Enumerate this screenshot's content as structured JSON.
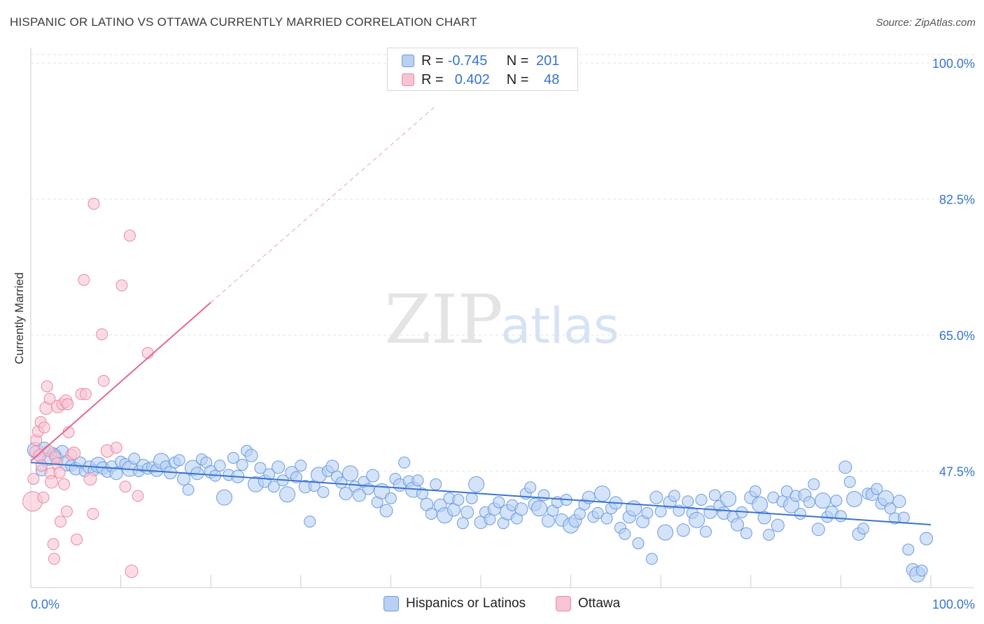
{
  "title": "HISPANIC OR LATINO VS OTTAWA CURRENTLY MARRIED CORRELATION CHART",
  "source": "Source: ZipAtlas.com",
  "watermark": {
    "zip": "ZIP",
    "atlas": "atlas"
  },
  "legend": {
    "r_label": "R =",
    "n_label": "N =",
    "rows": [
      {
        "name": "Hispanics or Latinos",
        "r": "-0.745",
        "n": "201",
        "fill": "#b8d0f3",
        "stroke": "#6b9be0"
      },
      {
        "name": "Ottawa",
        "r": "0.402",
        "n": "48",
        "fill": "#f8c4d4",
        "stroke": "#e88aa8"
      }
    ]
  },
  "colors": {
    "blue": "#3874d1",
    "blue_fill": "#b8d0f3",
    "blue_stroke": "#6b9be0",
    "pink": "#e3688e",
    "pink_fill": "#f8c4d4",
    "pink_stroke": "#e88aa8",
    "grid": "#e3e3e3",
    "tick_label": "#3874d1"
  },
  "chart_data": {
    "type": "scatter",
    "xlabel": "",
    "ylabel": "Currently Married",
    "x_tick_labels": {
      "left": "0.0%",
      "right": "100.0%"
    },
    "y_tick_labels": [
      "100.0%",
      "82.5%",
      "65.0%",
      "47.5%"
    ],
    "y_ticks": [
      100.0,
      82.5,
      65.0,
      47.5
    ],
    "xlim": [
      0,
      100
    ],
    "ylim": [
      32.5,
      102
    ],
    "series": [
      {
        "name": "Hispanics or Latinos",
        "r": -0.745,
        "n": 201,
        "trend": {
          "x0": 0,
          "y0": 48.6,
          "x1": 100,
          "y1": 40.6
        },
        "points": [
          [
            0.5,
            50.2
          ],
          [
            1.0,
            49.4
          ],
          [
            1.5,
            50.5
          ],
          [
            2.0,
            49.0
          ],
          [
            2.5,
            49.8
          ],
          [
            3.0,
            49.2
          ],
          [
            3.5,
            50.0
          ],
          [
            4.0,
            48.5
          ],
          [
            4.5,
            48.2
          ],
          [
            5.0,
            47.8
          ],
          [
            5.5,
            48.6
          ],
          [
            6.0,
            47.5
          ],
          [
            6.5,
            48.0
          ],
          [
            7.0,
            47.6
          ],
          [
            7.5,
            48.3
          ],
          [
            8.0,
            47.9
          ],
          [
            8.5,
            47.4
          ],
          [
            9.0,
            48.1
          ],
          [
            9.5,
            47.2
          ],
          [
            10.0,
            48.7
          ],
          [
            10.5,
            48.4
          ],
          [
            11.0,
            47.8
          ],
          [
            11.5,
            49.1
          ],
          [
            12.0,
            47.5
          ],
          [
            12.5,
            48.2
          ],
          [
            13.0,
            47.8
          ],
          [
            13.5,
            48.0
          ],
          [
            14.0,
            47.6
          ],
          [
            14.5,
            48.8
          ],
          [
            15.0,
            48.1
          ],
          [
            15.5,
            47.3
          ],
          [
            16.0,
            48.6
          ],
          [
            16.5,
            48.9
          ],
          [
            17.0,
            46.5
          ],
          [
            17.5,
            45.1
          ],
          [
            18.0,
            47.9
          ],
          [
            18.5,
            47.2
          ],
          [
            19.0,
            49.0
          ],
          [
            19.5,
            48.6
          ],
          [
            20.0,
            47.4
          ],
          [
            20.5,
            46.9
          ],
          [
            21.0,
            48.2
          ],
          [
            21.5,
            44.1
          ],
          [
            22.0,
            47.0
          ],
          [
            22.5,
            49.2
          ],
          [
            23.0,
            46.8
          ],
          [
            23.5,
            48.3
          ],
          [
            24.0,
            50.1
          ],
          [
            24.5,
            49.5
          ],
          [
            25.0,
            45.8
          ],
          [
            25.5,
            47.9
          ],
          [
            26.0,
            46.2
          ],
          [
            26.5,
            47.1
          ],
          [
            27.0,
            45.5
          ],
          [
            27.5,
            48.0
          ],
          [
            28.0,
            46.3
          ],
          [
            28.5,
            44.5
          ],
          [
            29.0,
            47.3
          ],
          [
            29.5,
            46.7
          ],
          [
            30.0,
            48.2
          ],
          [
            30.5,
            45.5
          ],
          [
            31.0,
            41.0
          ],
          [
            31.5,
            45.6
          ],
          [
            32.0,
            47.0
          ],
          [
            32.5,
            44.8
          ],
          [
            33.0,
            47.5
          ],
          [
            33.5,
            48.1
          ],
          [
            34.0,
            46.8
          ],
          [
            34.5,
            46.0
          ],
          [
            35.0,
            44.6
          ],
          [
            35.5,
            47.2
          ],
          [
            36.0,
            45.5
          ],
          [
            36.5,
            44.4
          ],
          [
            37.0,
            46.1
          ],
          [
            37.5,
            45.2
          ],
          [
            38.0,
            46.9
          ],
          [
            38.5,
            43.5
          ],
          [
            39.0,
            44.9
          ],
          [
            39.5,
            42.4
          ],
          [
            40.0,
            44.0
          ],
          [
            40.5,
            46.5
          ],
          [
            41.0,
            45.7
          ],
          [
            41.5,
            48.6
          ],
          [
            42.0,
            46.2
          ],
          [
            42.5,
            45.1
          ],
          [
            43.0,
            46.3
          ],
          [
            43.5,
            44.6
          ],
          [
            44.0,
            43.2
          ],
          [
            44.5,
            42.0
          ],
          [
            45.0,
            45.8
          ],
          [
            45.5,
            43.1
          ],
          [
            46.0,
            41.8
          ],
          [
            46.5,
            44.0
          ],
          [
            47.0,
            42.5
          ],
          [
            47.5,
            43.8
          ],
          [
            48.0,
            40.8
          ],
          [
            48.5,
            42.2
          ],
          [
            49.0,
            44.0
          ],
          [
            49.5,
            45.8
          ],
          [
            50.0,
            40.9
          ],
          [
            50.5,
            42.2
          ],
          [
            51.0,
            41.3
          ],
          [
            51.5,
            42.6
          ],
          [
            52.0,
            43.5
          ],
          [
            52.5,
            40.8
          ],
          [
            53.0,
            42.2
          ],
          [
            53.5,
            43.1
          ],
          [
            54.0,
            41.4
          ],
          [
            54.5,
            42.6
          ],
          [
            55.0,
            44.6
          ],
          [
            55.5,
            45.4
          ],
          [
            56.0,
            43.2
          ],
          [
            56.5,
            42.7
          ],
          [
            57.0,
            44.4
          ],
          [
            57.5,
            41.1
          ],
          [
            58.0,
            42.4
          ],
          [
            58.5,
            43.5
          ],
          [
            59.0,
            41.2
          ],
          [
            59.5,
            43.8
          ],
          [
            60.0,
            40.5
          ],
          [
            60.5,
            41.1
          ],
          [
            61.0,
            42.0
          ],
          [
            61.5,
            43.2
          ],
          [
            62.0,
            44.1
          ],
          [
            62.5,
            41.6
          ],
          [
            63.0,
            42.1
          ],
          [
            63.5,
            44.6
          ],
          [
            64.0,
            41.4
          ],
          [
            64.5,
            42.7
          ],
          [
            65.0,
            43.4
          ],
          [
            65.5,
            40.2
          ],
          [
            66.0,
            39.4
          ],
          [
            66.5,
            41.6
          ],
          [
            67.0,
            42.7
          ],
          [
            67.5,
            38.2
          ],
          [
            68.0,
            41.0
          ],
          [
            68.5,
            42.1
          ],
          [
            69.0,
            36.2
          ],
          [
            69.5,
            44.1
          ],
          [
            70.0,
            42.3
          ],
          [
            70.5,
            39.6
          ],
          [
            71.0,
            43.5
          ],
          [
            71.5,
            44.3
          ],
          [
            72.0,
            42.4
          ],
          [
            72.5,
            39.9
          ],
          [
            73.0,
            43.6
          ],
          [
            73.5,
            42.1
          ],
          [
            74.0,
            41.2
          ],
          [
            74.5,
            43.8
          ],
          [
            75.0,
            39.7
          ],
          [
            75.5,
            42.2
          ],
          [
            76.0,
            44.4
          ],
          [
            76.5,
            43.0
          ],
          [
            77.0,
            42.1
          ],
          [
            77.5,
            43.9
          ],
          [
            78.0,
            41.6
          ],
          [
            78.5,
            40.6
          ],
          [
            79.0,
            42.2
          ],
          [
            79.5,
            39.5
          ],
          [
            80.0,
            44.1
          ],
          [
            80.5,
            44.9
          ],
          [
            81.0,
            43.2
          ],
          [
            81.5,
            41.5
          ],
          [
            82.0,
            39.3
          ],
          [
            82.5,
            44.1
          ],
          [
            83.0,
            40.5
          ],
          [
            83.5,
            43.6
          ],
          [
            84.0,
            44.9
          ],
          [
            84.5,
            43.1
          ],
          [
            85.0,
            44.3
          ],
          [
            85.5,
            42.0
          ],
          [
            86.0,
            44.4
          ],
          [
            86.5,
            43.5
          ],
          [
            87.0,
            45.8
          ],
          [
            87.5,
            40.0
          ],
          [
            88.0,
            43.7
          ],
          [
            88.5,
            41.6
          ],
          [
            89.0,
            42.2
          ],
          [
            89.5,
            43.7
          ],
          [
            90.0,
            41.7
          ],
          [
            90.5,
            48.0
          ],
          [
            91.0,
            46.1
          ],
          [
            91.5,
            43.9
          ],
          [
            92.0,
            39.4
          ],
          [
            92.5,
            40.1
          ],
          [
            93.0,
            44.6
          ],
          [
            93.5,
            44.5
          ],
          [
            94.0,
            45.2
          ],
          [
            94.5,
            43.3
          ],
          [
            95.0,
            44.0
          ],
          [
            95.5,
            42.7
          ],
          [
            96.0,
            41.4
          ],
          [
            96.5,
            43.6
          ],
          [
            97.0,
            41.5
          ],
          [
            97.5,
            37.4
          ],
          [
            98.0,
            34.8
          ],
          [
            98.5,
            34.2
          ],
          [
            99.0,
            34.7
          ],
          [
            99.5,
            38.8
          ],
          [
            1.2,
            47.6
          ],
          [
            2.7,
            49.6
          ]
        ]
      },
      {
        "name": "Ottawa",
        "r": 0.402,
        "n": 48,
        "trend": {
          "x0": 0,
          "y0": 48.8,
          "x1": 20,
          "y1": 69.2,
          "dash_to": {
            "x": 45,
            "y": 94.5
          }
        },
        "points": [
          [
            0.2,
            43.6
          ],
          [
            0.3,
            46.5
          ],
          [
            0.5,
            50.0
          ],
          [
            0.6,
            51.5
          ],
          [
            0.8,
            52.6
          ],
          [
            1.0,
            49.5
          ],
          [
            1.1,
            53.8
          ],
          [
            1.2,
            48.2
          ],
          [
            1.4,
            44.1
          ],
          [
            1.5,
            53.1
          ],
          [
            1.7,
            55.6
          ],
          [
            1.8,
            58.4
          ],
          [
            2.0,
            50.1
          ],
          [
            2.1,
            56.8
          ],
          [
            2.2,
            47.2
          ],
          [
            2.3,
            46.1
          ],
          [
            2.5,
            38.1
          ],
          [
            2.6,
            36.2
          ],
          [
            2.7,
            49.3
          ],
          [
            2.9,
            48.5
          ],
          [
            3.0,
            55.8
          ],
          [
            3.2,
            47.3
          ],
          [
            3.3,
            41.0
          ],
          [
            3.5,
            56.1
          ],
          [
            3.7,
            45.8
          ],
          [
            3.9,
            56.5
          ],
          [
            4.0,
            42.3
          ],
          [
            4.1,
            56.1
          ],
          [
            4.2,
            52.5
          ],
          [
            4.5,
            49.6
          ],
          [
            4.8,
            49.8
          ],
          [
            5.1,
            38.7
          ],
          [
            5.6,
            57.4
          ],
          [
            5.9,
            72.1
          ],
          [
            6.1,
            57.4
          ],
          [
            6.6,
            46.5
          ],
          [
            6.9,
            42.0
          ],
          [
            7.0,
            81.9
          ],
          [
            7.9,
            65.1
          ],
          [
            8.1,
            59.1
          ],
          [
            8.5,
            50.1
          ],
          [
            9.5,
            50.5
          ],
          [
            10.1,
            71.4
          ],
          [
            10.5,
            45.5
          ],
          [
            11.0,
            77.8
          ],
          [
            11.2,
            34.6
          ],
          [
            11.9,
            44.3
          ],
          [
            13.0,
            62.7
          ]
        ]
      }
    ]
  }
}
